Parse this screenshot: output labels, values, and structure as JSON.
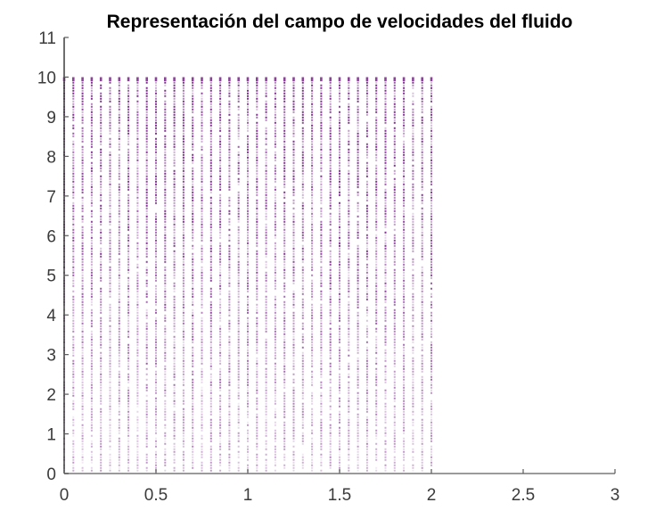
{
  "figure": {
    "background": "#ffffff"
  },
  "chart_data": {
    "type": "quiver",
    "title": "Representación del campo de velocidades del fluido",
    "xlabel": "",
    "ylabel": "",
    "xlim": [
      0,
      3
    ],
    "ylim": [
      0,
      11
    ],
    "grid": false,
    "legend": null,
    "x_ticks": [
      {
        "value": 0,
        "label": "0"
      },
      {
        "value": 0.5,
        "label": "0.5"
      },
      {
        "value": 1,
        "label": "1"
      },
      {
        "value": 1.5,
        "label": "1.5"
      },
      {
        "value": 2,
        "label": "2"
      },
      {
        "value": 2.5,
        "label": "2.5"
      },
      {
        "value": 3,
        "label": "3"
      }
    ],
    "y_ticks": [
      {
        "value": 0,
        "label": "0"
      },
      {
        "value": 1,
        "label": "1"
      },
      {
        "value": 2,
        "label": "2"
      },
      {
        "value": 3,
        "label": "3"
      },
      {
        "value": 4,
        "label": "4"
      },
      {
        "value": 5,
        "label": "5"
      },
      {
        "value": 6,
        "label": "6"
      },
      {
        "value": 7,
        "label": "7"
      },
      {
        "value": 8,
        "label": "8"
      },
      {
        "value": 9,
        "label": "9"
      },
      {
        "value": 10,
        "label": "10"
      },
      {
        "value": 11,
        "label": "11"
      }
    ],
    "field": {
      "description": "dense vertical velocity vectors forming dotted purple columns",
      "x_min": 0,
      "x_max": 2,
      "x_step": 0.05,
      "columns": 41,
      "y_min": 0,
      "y_max": 10,
      "direction": "up",
      "color": "#7E2F8E"
    },
    "colors": {
      "title": "#000000",
      "tick_label": "#3b3b3b",
      "y_axis": "#3f3f3f",
      "x_axis": "#9a9a9a",
      "tick_mark": "#5a5a5a",
      "vector": "#7E2F8E",
      "background": "#ffffff"
    }
  }
}
